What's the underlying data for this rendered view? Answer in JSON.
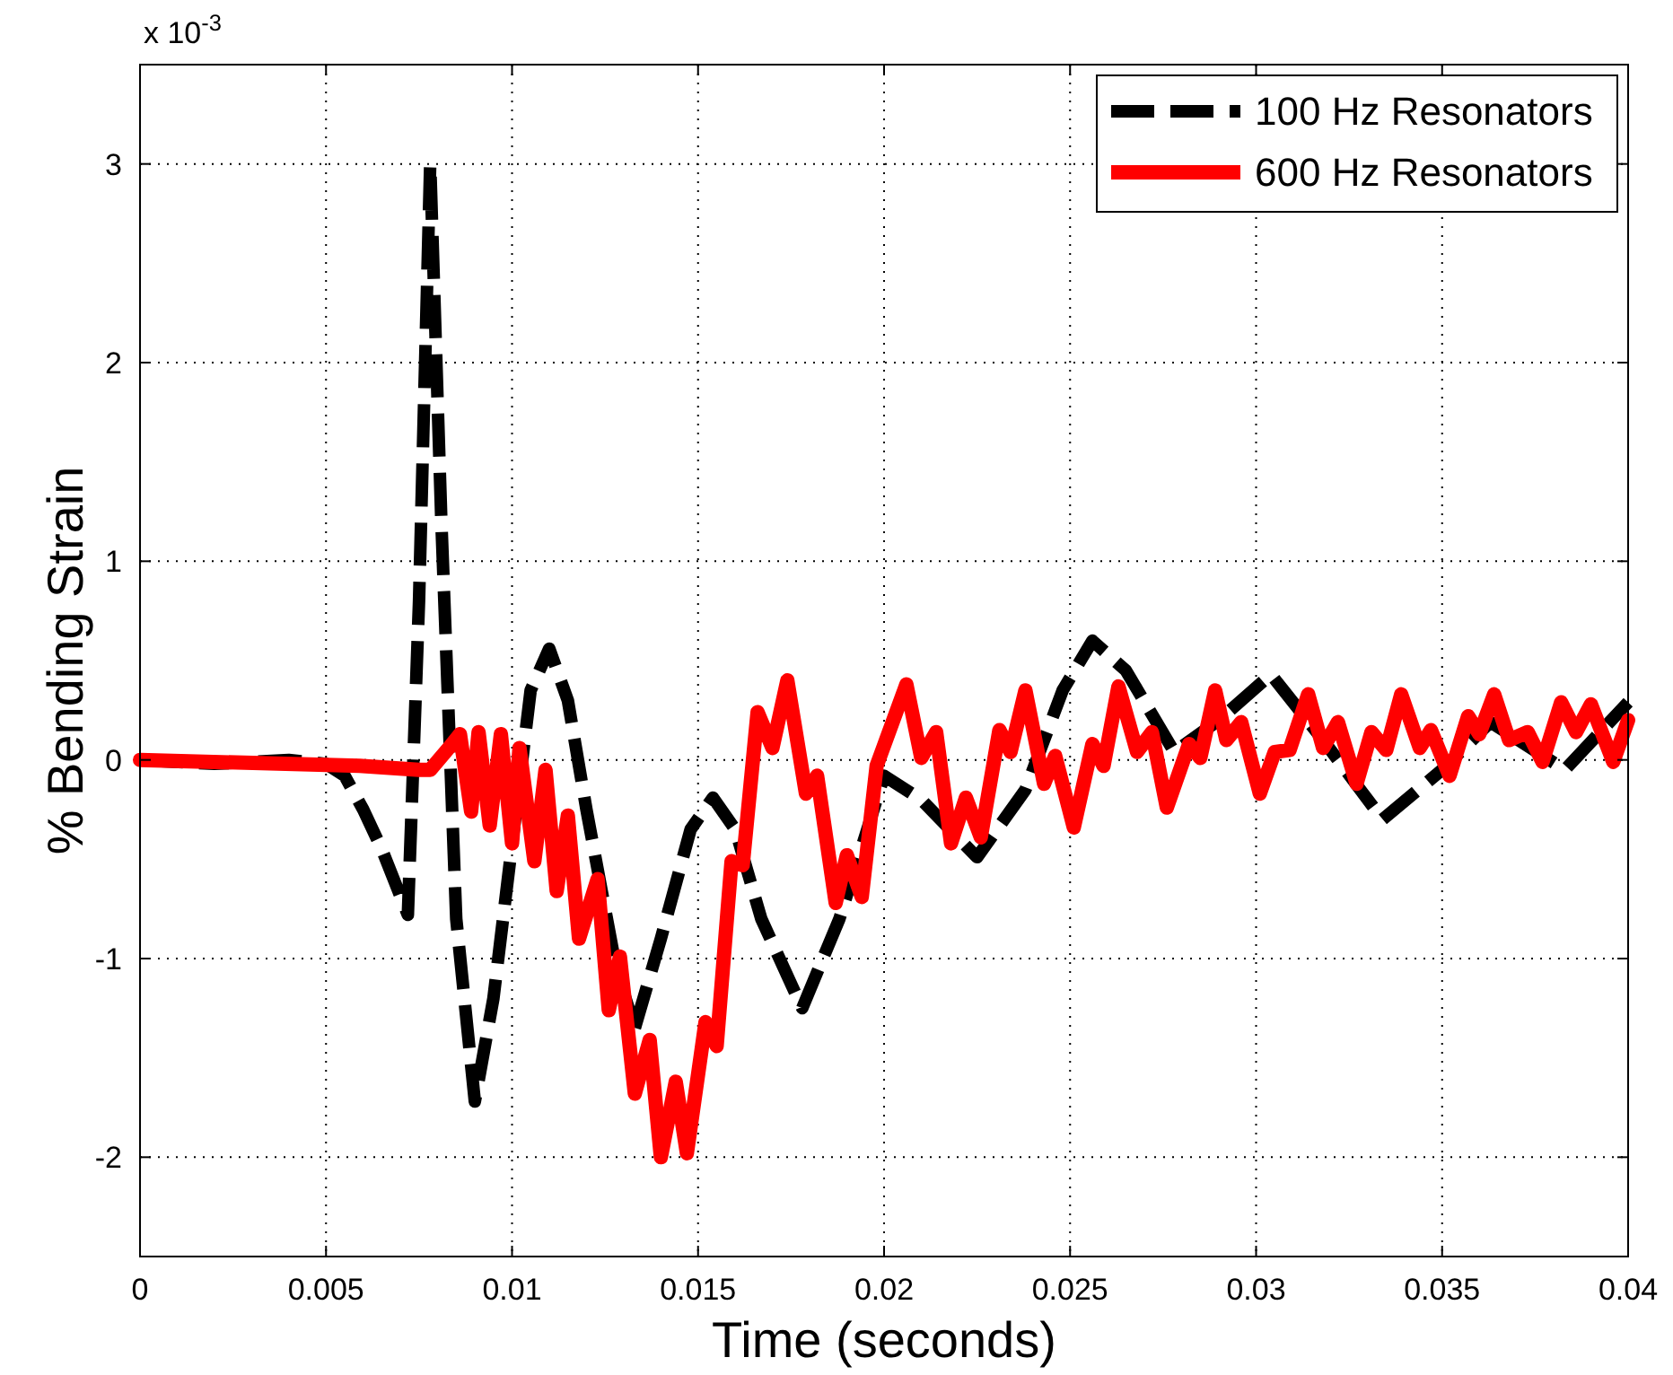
{
  "chart_data": {
    "type": "line",
    "xlabel": "Time (seconds)",
    "ylabel": "% Bending Strain",
    "annotations": [
      "x 10$^{-3}$"
    ],
    "xlim": [
      0,
      0.04
    ],
    "xticks": [
      0,
      0.005,
      0.01,
      0.015,
      0.02,
      0.025,
      0.03,
      0.035,
      0.04
    ],
    "ylim": [
      -2.5,
      3.5
    ],
    "yticks": [
      -2,
      -1,
      0,
      1,
      2,
      3
    ],
    "grid": true,
    "legend": "top right",
    "series": [
      {
        "name": "100 Hz Resonators",
        "color": "#000000",
        "line_style": "dashed",
        "x": [
          0,
          0.002,
          0.004,
          0.005,
          0.0055,
          0.006,
          0.0065,
          0.0072,
          0.0075,
          0.0078,
          0.0081,
          0.0085,
          0.009,
          0.0095,
          0.0105,
          0.011,
          0.0115,
          0.012,
          0.0128,
          0.0133,
          0.014,
          0.0148,
          0.0154,
          0.016,
          0.0167,
          0.0178,
          0.0188,
          0.02,
          0.021,
          0.0225,
          0.0238,
          0.0248,
          0.0256,
          0.0265,
          0.0278,
          0.029,
          0.0304,
          0.0318,
          0.0334,
          0.035,
          0.0363,
          0.0383,
          0.04
        ],
        "values": [
          0,
          -0.02,
          0,
          -0.02,
          -0.08,
          -0.25,
          -0.45,
          -0.78,
          0.8,
          3.0,
          1.2,
          -0.8,
          -1.72,
          -1.2,
          0.35,
          0.56,
          0.3,
          -0.25,
          -1.05,
          -1.35,
          -0.9,
          -0.35,
          -0.19,
          -0.35,
          -0.8,
          -1.25,
          -0.8,
          -0.08,
          -0.2,
          -0.49,
          -0.15,
          0.35,
          0.6,
          0.45,
          0.04,
          0.2,
          0.43,
          0.1,
          -0.3,
          -0.05,
          0.19,
          -0.05,
          0.29
        ]
      },
      {
        "name": "600 Hz Resonators",
        "color": "#ff0000",
        "line_style": "solid",
        "x": [
          0,
          0.0059,
          0.0075,
          0.0078,
          0.0083,
          0.0086,
          0.0089,
          0.0091,
          0.0094,
          0.0097,
          0.01,
          0.0102,
          0.0106,
          0.0109,
          0.0112,
          0.0115,
          0.0118,
          0.0123,
          0.0126,
          0.0129,
          0.0133,
          0.0137,
          0.014,
          0.0144,
          0.0147,
          0.0152,
          0.0155,
          0.0159,
          0.0162,
          0.0166,
          0.017,
          0.0174,
          0.0179,
          0.0182,
          0.0187,
          0.019,
          0.0194,
          0.0198,
          0.0206,
          0.021,
          0.0214,
          0.0218,
          0.0222,
          0.0226,
          0.0231,
          0.0234,
          0.0238,
          0.0243,
          0.0246,
          0.0251,
          0.0256,
          0.0259,
          0.0263,
          0.0268,
          0.0272,
          0.0276,
          0.0282,
          0.0285,
          0.0289,
          0.0292,
          0.0296,
          0.0301,
          0.0305,
          0.0309,
          0.0314,
          0.0318,
          0.0322,
          0.0327,
          0.0331,
          0.0335,
          0.0339,
          0.0344,
          0.0347,
          0.0352,
          0.0357,
          0.036,
          0.0364,
          0.0368,
          0.0373,
          0.0377,
          0.0382,
          0.0386,
          0.039,
          0.0396,
          0.04
        ],
        "values": [
          0,
          -0.03,
          -0.05,
          -0.05,
          0.06,
          0.13,
          -0.26,
          0.14,
          -0.33,
          0.13,
          -0.42,
          0.06,
          -0.51,
          -0.05,
          -0.66,
          -0.28,
          -0.9,
          -0.6,
          -1.26,
          -0.99,
          -1.68,
          -1.41,
          -2.0,
          -1.62,
          -1.98,
          -1.32,
          -1.44,
          -0.51,
          -0.53,
          0.24,
          0.06,
          0.4,
          -0.17,
          -0.08,
          -0.72,
          -0.48,
          -0.69,
          -0.03,
          0.38,
          0.01,
          0.14,
          -0.42,
          -0.19,
          -0.39,
          0.15,
          0.04,
          0.35,
          -0.12,
          0.02,
          -0.34,
          0.08,
          -0.03,
          0.37,
          0.04,
          0.14,
          -0.24,
          0.08,
          0.01,
          0.35,
          0.1,
          0.19,
          -0.17,
          0.04,
          0.05,
          0.33,
          0.06,
          0.19,
          -0.12,
          0.14,
          0.05,
          0.33,
          0.06,
          0.15,
          -0.08,
          0.22,
          0.13,
          0.33,
          0.1,
          0.14,
          -0.01,
          0.29,
          0.14,
          0.28,
          -0.01,
          0.2
        ]
      }
    ]
  }
}
